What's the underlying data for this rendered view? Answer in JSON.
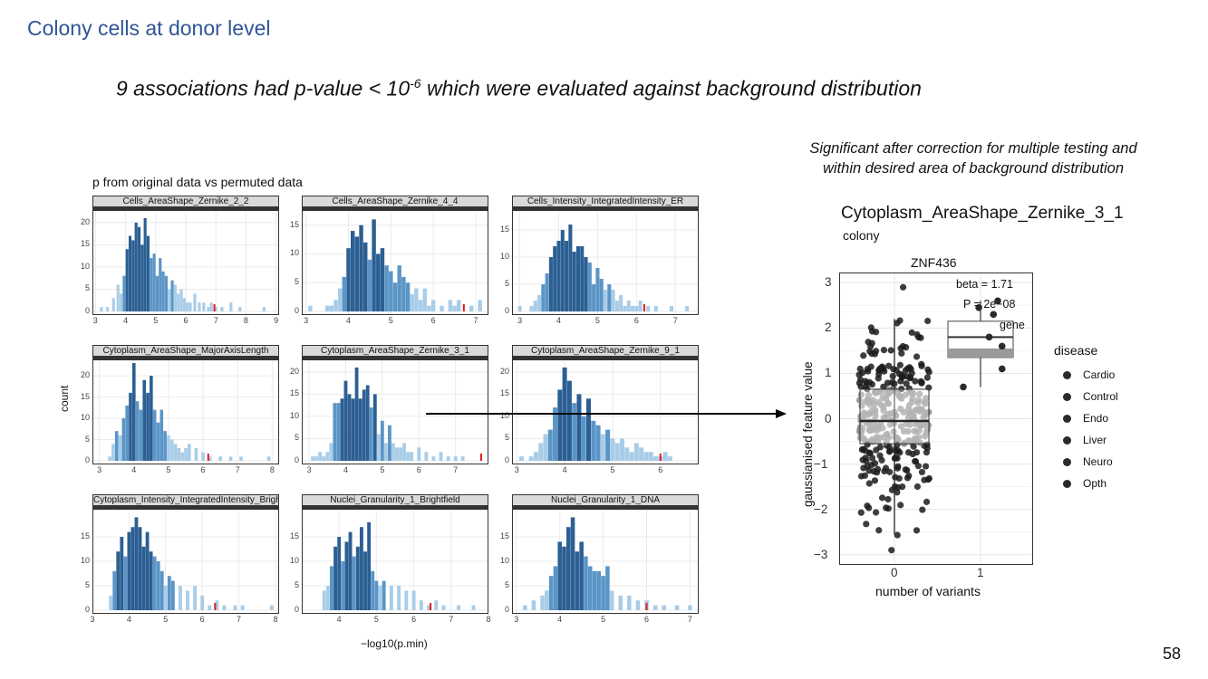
{
  "slide": {
    "title": "Colony cells at donor level",
    "headline_pre": "9 associations had p-value < 10",
    "headline_exp": "-6",
    "headline_post": " which were evaluated against background distribution",
    "note_line1": "Significant after correction for multiple testing and",
    "note_line2": "within desired area of background distribution",
    "page_number": "58"
  },
  "colors": {
    "bar_dark": "#2c5f93",
    "bar_mid": "#5b95c7",
    "bar_light": "#a9cde8",
    "observed": "#e31a1c",
    "title": "#2f5597"
  },
  "chart_data": [
    {
      "type": "bar",
      "title": "p from original data vs permuted data",
      "xlabel": "−log10(p.min)",
      "ylabel": "count",
      "panels": [
        {
          "name": "Cells_AreaShape_Zernike_2_2",
          "xlim": [
            2.9,
            9.1
          ],
          "ylim": [
            0,
            22
          ],
          "xticks": [
            3,
            4,
            5,
            6,
            7,
            8,
            9
          ],
          "yticks": [
            0,
            5,
            10,
            15,
            20
          ],
          "observed": 6.95,
          "x": [
            3.2,
            3.4,
            3.6,
            3.75,
            3.85,
            3.95,
            4.05,
            4.15,
            4.25,
            4.35,
            4.45,
            4.55,
            4.65,
            4.75,
            4.85,
            4.95,
            5.05,
            5.15,
            5.25,
            5.35,
            5.45,
            5.55,
            5.65,
            5.75,
            5.85,
            5.95,
            6.05,
            6.15,
            6.3,
            6.45,
            6.6,
            6.75,
            6.85,
            7.0,
            7.2,
            7.5,
            7.8,
            8.6
          ],
          "y": [
            1,
            1,
            3,
            6,
            4,
            8,
            14,
            17,
            16,
            20,
            19,
            15,
            21,
            17,
            12,
            13,
            8,
            12,
            9,
            8,
            5,
            7,
            6,
            4,
            5,
            3,
            2,
            2,
            4,
            2,
            2,
            1,
            2,
            1,
            1,
            2,
            1,
            1
          ]
        },
        {
          "name": "Cells_AreaShape_Zernike_4_4",
          "xlim": [
            2.9,
            7.3
          ],
          "ylim": [
            0,
            17
          ],
          "xticks": [
            3,
            4,
            5,
            6,
            7
          ],
          "yticks": [
            0,
            5,
            10,
            15
          ],
          "observed": 6.72,
          "x": [
            3.1,
            3.5,
            3.6,
            3.7,
            3.8,
            3.9,
            4.0,
            4.1,
            4.2,
            4.3,
            4.4,
            4.5,
            4.6,
            4.7,
            4.8,
            4.9,
            5.0,
            5.1,
            5.2,
            5.3,
            5.4,
            5.5,
            5.6,
            5.7,
            5.8,
            5.9,
            6.0,
            6.2,
            6.4,
            6.5,
            6.6,
            6.9,
            7.1
          ],
          "y": [
            1,
            1,
            1,
            2,
            4,
            6,
            11,
            14,
            13,
            15,
            12,
            9,
            16,
            10,
            11,
            8,
            7,
            5,
            8,
            6,
            5,
            3,
            4,
            2,
            4,
            1,
            2,
            1,
            2,
            1,
            2,
            1,
            2
          ]
        },
        {
          "name": "Cells_Intensity_IntegratedIntensity_ER",
          "xlim": [
            2.8,
            7.6
          ],
          "ylim": [
            0,
            18
          ],
          "xticks": [
            3,
            4,
            5,
            6,
            7
          ],
          "yticks": [
            0,
            5,
            10,
            15
          ],
          "observed": 6.2,
          "x": [
            3.0,
            3.3,
            3.4,
            3.5,
            3.6,
            3.7,
            3.8,
            3.9,
            4.0,
            4.1,
            4.2,
            4.3,
            4.4,
            4.5,
            4.6,
            4.7,
            4.8,
            4.9,
            5.0,
            5.1,
            5.2,
            5.3,
            5.4,
            5.5,
            5.6,
            5.7,
            5.8,
            5.9,
            6.0,
            6.1,
            6.3,
            6.5,
            6.9,
            7.3
          ],
          "y": [
            1,
            1,
            2,
            3,
            5,
            7,
            10,
            12,
            13,
            15,
            13,
            16,
            11,
            12,
            12,
            10,
            9,
            5,
            8,
            6,
            4,
            5,
            4,
            2,
            3,
            1,
            2,
            1,
            1,
            2,
            1,
            1,
            1,
            1
          ]
        },
        {
          "name": "Cytoplasm_AreaShape_MajorAxisLength",
          "xlim": [
            2.8,
            8.2
          ],
          "ylim": [
            0,
            23
          ],
          "xticks": [
            3,
            4,
            5,
            6,
            7,
            8
          ],
          "yticks": [
            0,
            5,
            10,
            15,
            20
          ],
          "observed": 6.15,
          "x": [
            3.3,
            3.4,
            3.5,
            3.6,
            3.7,
            3.8,
            3.9,
            4.0,
            4.1,
            4.2,
            4.3,
            4.4,
            4.5,
            4.6,
            4.7,
            4.8,
            4.9,
            5.0,
            5.1,
            5.2,
            5.3,
            5.4,
            5.5,
            5.6,
            5.8,
            6.0,
            6.2,
            6.5,
            6.8,
            7.1,
            7.9
          ],
          "y": [
            1,
            4,
            7,
            6,
            10,
            13,
            16,
            23,
            14,
            12,
            19,
            16,
            20,
            12,
            9,
            12,
            7,
            6,
            5,
            4,
            3,
            2,
            3,
            4,
            3,
            2,
            1,
            1,
            1,
            1,
            1
          ]
        },
        {
          "name": "Cytoplasm_AreaShape_Zernike_3_1",
          "xlim": [
            2.8,
            7.9
          ],
          "ylim": [
            0,
            22
          ],
          "xticks": [
            3,
            4,
            5,
            6,
            7
          ],
          "yticks": [
            0,
            5,
            10,
            15,
            20
          ],
          "observed": 7.7,
          "x": [
            3.1,
            3.2,
            3.3,
            3.4,
            3.5,
            3.6,
            3.7,
            3.8,
            3.9,
            4.0,
            4.1,
            4.2,
            4.3,
            4.4,
            4.5,
            4.6,
            4.7,
            4.8,
            4.9,
            5.0,
            5.1,
            5.2,
            5.3,
            5.4,
            5.5,
            5.6,
            5.7,
            5.8,
            6.0,
            6.2,
            6.4,
            6.6,
            6.8,
            7.0,
            7.2
          ],
          "y": [
            1,
            1,
            2,
            1,
            2,
            4,
            13,
            13,
            14,
            18,
            15,
            14,
            21,
            14,
            16,
            17,
            12,
            15,
            6,
            9,
            4,
            8,
            4,
            3,
            3,
            4,
            2,
            2,
            3,
            2,
            1,
            2,
            1,
            1,
            1
          ]
        },
        {
          "name": "Cytoplasm_AreaShape_Zernike_9_1",
          "xlim": [
            2.9,
            6.8
          ],
          "ylim": [
            0,
            22
          ],
          "xticks": [
            3,
            4,
            5,
            6
          ],
          "yticks": [
            0,
            5,
            10,
            15,
            20
          ],
          "observed": 6.0,
          "x": [
            3.1,
            3.3,
            3.4,
            3.5,
            3.6,
            3.7,
            3.8,
            3.9,
            4.0,
            4.1,
            4.2,
            4.3,
            4.4,
            4.5,
            4.6,
            4.7,
            4.8,
            4.9,
            5.0,
            5.1,
            5.2,
            5.3,
            5.4,
            5.5,
            5.6,
            5.7,
            5.8,
            5.9,
            6.0,
            6.1,
            6.2
          ],
          "y": [
            1,
            1,
            2,
            4,
            6,
            7,
            12,
            16,
            21,
            18,
            13,
            15,
            10,
            14,
            9,
            8,
            6,
            7,
            5,
            4,
            5,
            3,
            2,
            4,
            3,
            2,
            2,
            1,
            1,
            2,
            1
          ]
        },
        {
          "name": "Cytoplasm_Intensity_IntegratedIntensity_Brightfield",
          "xlim": [
            3.0,
            8.1
          ],
          "ylim": [
            0,
            20
          ],
          "xticks": [
            3,
            4,
            5,
            6,
            7,
            8
          ],
          "yticks": [
            0,
            5,
            10,
            15
          ],
          "observed": 6.35,
          "x": [
            3.5,
            3.6,
            3.7,
            3.8,
            3.9,
            4.0,
            4.1,
            4.2,
            4.3,
            4.4,
            4.5,
            4.6,
            4.7,
            4.8,
            4.9,
            5.0,
            5.1,
            5.2,
            5.4,
            5.6,
            5.8,
            6.0,
            6.2,
            6.4,
            6.6,
            6.9,
            7.1,
            7.9
          ],
          "y": [
            3,
            8,
            12,
            15,
            11,
            16,
            17,
            19,
            17,
            13,
            16,
            12,
            11,
            10,
            8,
            5,
            7,
            6,
            5,
            4,
            5,
            3,
            1,
            2,
            1,
            1,
            1,
            1
          ]
        },
        {
          "name": "Nuclei_Granularity_1_Brightfield",
          "xlim": [
            3.0,
            8.0
          ],
          "ylim": [
            0,
            20
          ],
          "xticks": [
            4,
            5,
            6,
            7,
            8
          ],
          "yticks": [
            0,
            5,
            10,
            15
          ],
          "observed": 6.45,
          "x": [
            3.6,
            3.7,
            3.8,
            3.9,
            4.0,
            4.1,
            4.2,
            4.3,
            4.4,
            4.5,
            4.6,
            4.7,
            4.8,
            4.9,
            5.0,
            5.1,
            5.2,
            5.4,
            5.6,
            5.8,
            6.0,
            6.2,
            6.4,
            6.6,
            6.8,
            7.2,
            7.6
          ],
          "y": [
            4,
            5,
            9,
            13,
            15,
            10,
            14,
            16,
            11,
            13,
            17,
            12,
            18,
            8,
            6,
            5,
            6,
            5,
            5,
            4,
            4,
            2,
            1,
            2,
            1,
            1,
            1
          ]
        },
        {
          "name": "Nuclei_Granularity_1_DNA",
          "xlim": [
            2.9,
            7.2
          ],
          "ylim": [
            0,
            20
          ],
          "xticks": [
            3,
            4,
            5,
            6,
            7
          ],
          "yticks": [
            0,
            5,
            10,
            15
          ],
          "observed": 6.0,
          "x": [
            3.2,
            3.4,
            3.6,
            3.7,
            3.8,
            3.9,
            4.0,
            4.1,
            4.2,
            4.3,
            4.4,
            4.5,
            4.6,
            4.7,
            4.8,
            4.9,
            5.0,
            5.1,
            5.2,
            5.4,
            5.6,
            5.8,
            6.0,
            6.2,
            6.4,
            6.7,
            7.0
          ],
          "y": [
            1,
            2,
            3,
            4,
            7,
            9,
            14,
            13,
            17,
            19,
            12,
            14,
            11,
            9,
            8,
            8,
            7,
            9,
            4,
            3,
            3,
            2,
            2,
            1,
            1,
            1,
            1
          ]
        }
      ]
    },
    {
      "type": "scatter",
      "title": "Cytoplasm_AreaShape_Zernike_3_1",
      "subtitle": "colony",
      "facet": "ZNF436",
      "xlabel": "number of variants",
      "ylabel": "gaussianised feature value",
      "categories": [
        "0",
        "1"
      ],
      "ylim": [
        -3.2,
        3.2
      ],
      "yticks": [
        3,
        2,
        1,
        0,
        -1,
        -2,
        -3
      ],
      "annotations": {
        "beta": "beta = 1.71",
        "p": "P = 2e−08",
        "gene": "gene"
      },
      "box_0": {
        "q1": -0.55,
        "median": -0.05,
        "q3": 0.65,
        "whisker_low": -2.55,
        "whisker_high": 2.2
      },
      "box_1": {
        "q1": 1.35,
        "median": 1.8,
        "q3": 2.15,
        "whisker_low": 0.7,
        "whisker_high": 2.6
      },
      "legend_title": "disease",
      "legend": [
        "Cardio",
        "Control",
        "Endo",
        "Liver",
        "Neuro",
        "Opth"
      ],
      "points_1": [
        [
          1.2,
          2.6
        ],
        [
          1.15,
          2.3
        ],
        [
          1.1,
          1.8
        ],
        [
          1.25,
          1.6
        ],
        [
          0.8,
          0.7
        ],
        [
          1.25,
          1.1
        ],
        [
          0.98,
          2.45
        ]
      ]
    }
  ]
}
